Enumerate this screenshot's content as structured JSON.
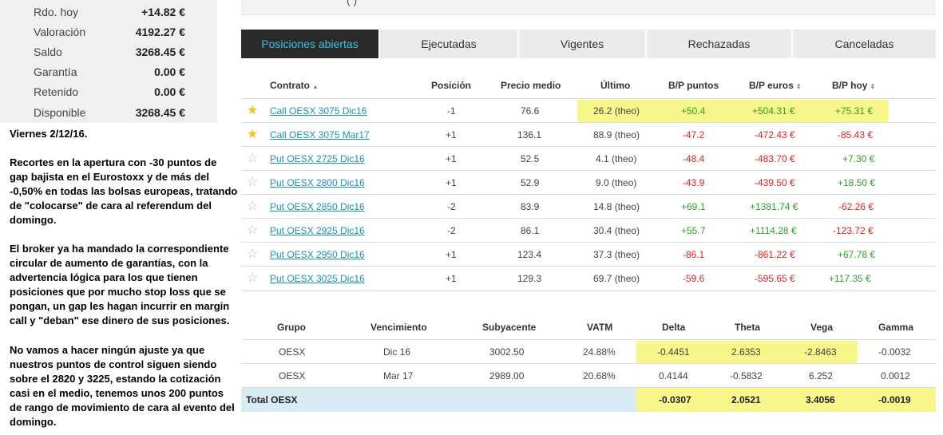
{
  "account": {
    "rows": [
      {
        "label": "Rdo. hoy",
        "value": "+14.82 €"
      },
      {
        "label": "Valoración",
        "value": "4192.27 €"
      },
      {
        "label": "Saldo",
        "value": "3268.45 €"
      },
      {
        "label": "Garantía",
        "value": "0.00 €"
      },
      {
        "label": "Retenido",
        "value": "0.00 €"
      },
      {
        "label": "Disponible",
        "value": "3268.45 €"
      }
    ]
  },
  "note": {
    "date": "Viernes 2/12/16.",
    "p1": "Recortes en la apertura con -30 puntos de gap bajista en el Eurostoxx y de más del -0,50% en todas las bolsas europeas, tratando de \"colocarse\" de cara al referendum del domingo.",
    "p2": "El broker ya ha mandado la correspondiente circular de aumento de garantías, con la advertencia lógica para los que tienen posiciones que por mucho stop loss que se pongan, un gap les hagan incurrir en margin call y \"deban\" ese dinero de sus posiciones.",
    "p3": "No vamos a hacer ningún ajuste ya que nuestros puntos de control siguen siendo sobre el 2820 y 3225, estando la cotización casi en el medio, tenemos unos 200 puntos de rango de movimiento de cara al evento del domingo."
  },
  "top_strip": {
    "fragment": "(                                     )"
  },
  "tabs": [
    "Posiciones abiertas",
    "Ejecutadas",
    "Vigentes",
    "Rechazadas",
    "Canceladas"
  ],
  "positions": {
    "headers": {
      "contrato": "Contrato",
      "posicion": "Posición",
      "precio": "Precio medio",
      "ultimo": "Último",
      "bp_puntos": "B/P puntos",
      "bp_euros": "B/P euros",
      "bp_hoy": "B/P hoy"
    },
    "rows": [
      {
        "star": true,
        "contract": "Call OESX 3075 Dic16",
        "position": "-1",
        "avg": "76.6",
        "last": "26.2 (theo)",
        "pts": "+50.4",
        "eur": "+504.31 €",
        "today": "+75.31 €"
      },
      {
        "star": true,
        "contract": "Call OESX 3075 Mar17",
        "position": "+1",
        "avg": "136.1",
        "last": "88.9 (theo)",
        "pts": "-47.2",
        "eur": "-472.43 €",
        "today": "-85.43 €"
      },
      {
        "star": false,
        "contract": "Put OESX 2725 Dic16",
        "position": "+1",
        "avg": "52.5",
        "last": "4.1 (theo)",
        "pts": "-48.4",
        "eur": "-483.70 €",
        "today": "+7.30 €"
      },
      {
        "star": false,
        "contract": "Put OESX 2800 Dic16",
        "position": "+1",
        "avg": "52.9",
        "last": "9.0 (theo)",
        "pts": "-43.9",
        "eur": "-439.50 €",
        "today": "+18.50 €"
      },
      {
        "star": false,
        "contract": "Put OESX 2850 Dic16",
        "position": "-2",
        "avg": "83.9",
        "last": "14.8 (theo)",
        "pts": "+69.1",
        "eur": "+1381.74 €",
        "today": "-62.26 €"
      },
      {
        "star": false,
        "contract": "Put OESX 2925 Dic16",
        "position": "-2",
        "avg": "86.1",
        "last": "30.4 (theo)",
        "pts": "+55.7",
        "eur": "+1114.28 €",
        "today": "-123.72 €"
      },
      {
        "star": false,
        "contract": "Put OESX 2950 Dic16",
        "position": "+1",
        "avg": "123.4",
        "last": "37.3 (theo)",
        "pts": "-86.1",
        "eur": "-861.22 €",
        "today": "+67.78 €"
      },
      {
        "star": false,
        "contract": "Put OESX 3025 Dic16",
        "position": "+1",
        "avg": "129.3",
        "last": "69.7 (theo)",
        "pts": "-59.6",
        "eur": "-595.65 €",
        "today": "+117.35 €"
      }
    ]
  },
  "greeks": {
    "headers": {
      "grupo": "Grupo",
      "vencimiento": "Vencimiento",
      "subyacente": "Subyacente",
      "vatm": "VATM",
      "delta": "Delta",
      "theta": "Theta",
      "vega": "Vega",
      "gamma": "Gamma"
    },
    "rows": [
      {
        "grupo": "OESX",
        "venc": "Dic 16",
        "sub": "3002.50",
        "vatm": "24.88%",
        "delta": "-0.4451",
        "theta": "2.6353",
        "vega": "-2.8463",
        "gamma": "-0.0032"
      },
      {
        "grupo": "OESX",
        "venc": "Mar 17",
        "sub": "2989.00",
        "vatm": "20.68%",
        "delta": "0.4144",
        "theta": "-0.5832",
        "vega": "6.252",
        "gamma": "0.0012"
      }
    ],
    "total": {
      "label": "Total OESX",
      "delta": "-0.0307",
      "theta": "2.0521",
      "vega": "3.4056",
      "gamma": "-0.0019"
    }
  },
  "colors": {
    "highlight": "#f8f78c",
    "positive": "#2aa02a",
    "negative": "#e02020",
    "link": "#1a8fb8",
    "active_tab_text": "#3cc4e0",
    "total_row": "#d9ebf4"
  }
}
